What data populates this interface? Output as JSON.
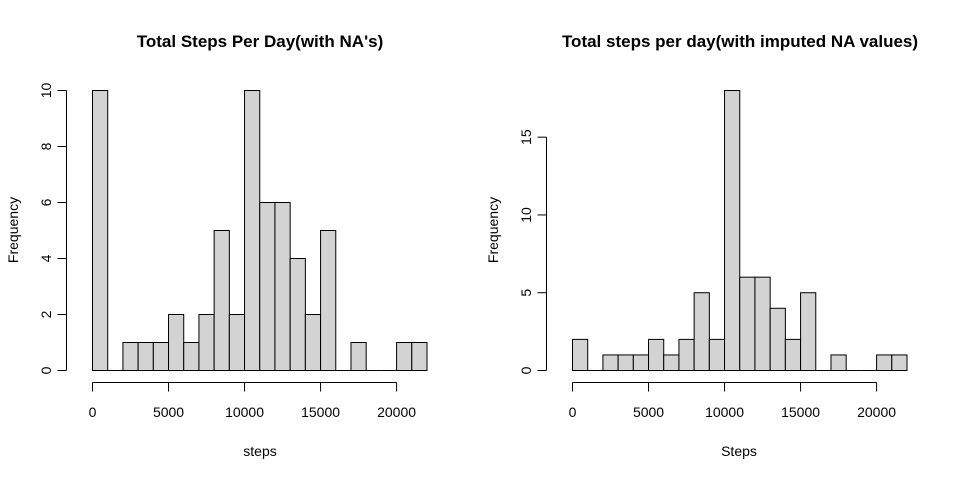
{
  "chart_data": [
    {
      "type": "bar",
      "title": "Total Steps Per Day(with NA's)",
      "xlabel": "steps",
      "ylabel": "Frequency",
      "bin_width": 1000,
      "bin_starts": [
        0,
        1000,
        2000,
        3000,
        4000,
        5000,
        6000,
        7000,
        8000,
        9000,
        10000,
        11000,
        12000,
        13000,
        14000,
        15000,
        16000,
        17000,
        18000,
        19000,
        20000,
        21000
      ],
      "values": [
        10,
        0,
        1,
        1,
        1,
        2,
        1,
        2,
        5,
        2,
        10,
        6,
        6,
        4,
        2,
        5,
        0,
        1,
        0,
        0,
        1,
        1
      ],
      "xticks": [
        0,
        5000,
        10000,
        15000,
        20000
      ],
      "xtick_labels": [
        "0",
        "5000",
        "10000",
        "15000",
        "20000"
      ],
      "yticks": [
        0,
        2,
        4,
        6,
        8,
        10
      ],
      "ytick_labels": [
        "0",
        "2",
        "4",
        "6",
        "8",
        "10"
      ],
      "xlim": [
        0,
        22000
      ],
      "ylim": [
        0,
        10
      ],
      "bar_color": "#d3d3d3",
      "grid": false
    },
    {
      "type": "bar",
      "title": "Total steps per day(with imputed NA values)",
      "xlabel": "Steps",
      "ylabel": "Frequency",
      "bin_width": 1000,
      "bin_starts": [
        0,
        1000,
        2000,
        3000,
        4000,
        5000,
        6000,
        7000,
        8000,
        9000,
        10000,
        11000,
        12000,
        13000,
        14000,
        15000,
        16000,
        17000,
        18000,
        19000,
        20000,
        21000
      ],
      "values": [
        2,
        0,
        1,
        1,
        1,
        2,
        1,
        2,
        5,
        2,
        18,
        6,
        6,
        4,
        2,
        5,
        0,
        1,
        0,
        0,
        1,
        1
      ],
      "xticks": [
        0,
        5000,
        10000,
        15000,
        20000
      ],
      "xtick_labels": [
        "0",
        "5000",
        "10000",
        "15000",
        "20000"
      ],
      "yticks": [
        0,
        5,
        10,
        15
      ],
      "ytick_labels": [
        "0",
        "5",
        "10",
        "15"
      ],
      "xlim": [
        0,
        22000
      ],
      "ylim": [
        0,
        18
      ],
      "bar_color": "#d3d3d3",
      "grid": false
    }
  ]
}
